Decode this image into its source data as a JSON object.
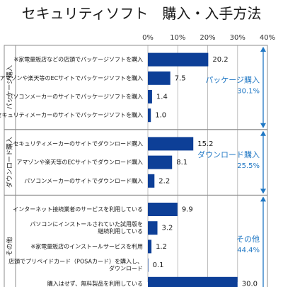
{
  "chart_data": {
    "type": "bar",
    "orientation": "horizontal",
    "title": "セキュリティソフト　購入・入手方法",
    "xlim": [
      0,
      40
    ],
    "x_ticks": [
      "0%",
      "10%",
      "20%",
      "30%",
      "40%"
    ],
    "grid": true,
    "groups": [
      {
        "name": "パッケージ購入",
        "summary_label": "パッケージ購入",
        "summary_value": "30.1%",
        "items": [
          {
            "label": [
              "※家電量販店などの店頭でパッケージソフトを購入"
            ],
            "value": 20.2
          },
          {
            "label": [
              "アマゾンや楽天等のECサイトでパッケージソフトを購入"
            ],
            "value": 7.5
          },
          {
            "label": [
              "パソコンメーカーのサイトでパッケージソフトを購入"
            ],
            "value": 1.4
          },
          {
            "label": [
              "セキュリティメーカーのサイトでパッケージソフトを購入"
            ],
            "value": 1.0
          }
        ]
      },
      {
        "name": "ダウンロード購入",
        "summary_label": "ダウンロード購入",
        "summary_value": "25.5%",
        "items": [
          {
            "label": [
              "セキュリティメーカーのサイトでダウンロード購入"
            ],
            "value": 15.2
          },
          {
            "label": [
              "アマゾンや楽天等のECサイトでダウンロード購入"
            ],
            "value": 8.1
          },
          {
            "label": [
              "パソコンメーカーのサイトでダウンロード購入"
            ],
            "value": 2.2
          }
        ]
      },
      {
        "name": "その他",
        "summary_label": "その他",
        "summary_value": "44.4%",
        "items": [
          {
            "label": [
              "インターネット接続業者のサービスを利用している"
            ],
            "value": 9.9
          },
          {
            "label": [
              "パソコンにインストールされていた試用版を",
              "継続利用している"
            ],
            "value": 3.2
          },
          {
            "label": [
              "※家電量販店のインストールサービスを利用"
            ],
            "value": 1.2
          },
          {
            "label": [
              "店頭でプリペイドカード（POSAカード）を購入し、",
              "ダウンロード"
            ],
            "value": 0.1
          },
          {
            "label": [
              "購入はせず、無料製品を利用している"
            ],
            "value": 30.0
          }
        ]
      }
    ],
    "colors": {
      "bar": "#0d3f97",
      "accent": "#1f77c4",
      "grid": "#bfbfbf",
      "frame": "#8c8c8c"
    }
  }
}
